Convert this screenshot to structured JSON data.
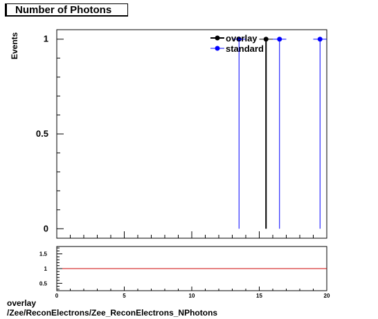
{
  "title": "Number of Photons",
  "footer": {
    "line1": "overlay",
    "line2": "/Zee/ReconElectrons/Zee_ReconElectrons_NPhotons"
  },
  "colors": {
    "overlay": "#000000",
    "standard": "#0000ff",
    "ratio_line": "#cc0000"
  },
  "chart_data": [
    {
      "type": "scatter",
      "title": "Number of Photons",
      "ylabel": "Events",
      "xlim": [
        0,
        20
      ],
      "ylim": [
        -0.05,
        1.05
      ],
      "yticks": [
        0,
        0.5,
        1
      ],
      "ytick_labels": [
        "0",
        "0.5",
        "1"
      ],
      "legend": {
        "placement": "top-right",
        "entries": [
          "overlay",
          "standard"
        ]
      },
      "series": [
        {
          "name": "overlay",
          "color": "#000000",
          "points": [
            {
              "x": 15.5,
              "y": 1,
              "xerr": 0.5
            }
          ]
        },
        {
          "name": "standard",
          "color": "#0000ff",
          "points": [
            {
              "x": 13.5,
              "y": 1,
              "xerr": 0.5
            },
            {
              "x": 16.5,
              "y": 1,
              "xerr": 0.5
            },
            {
              "x": 19.5,
              "y": 1,
              "xerr": 0.5
            }
          ]
        }
      ]
    },
    {
      "type": "line",
      "xlim": [
        0,
        20
      ],
      "ylim": [
        0.25,
        1.75
      ],
      "xticks": [
        0,
        5,
        10,
        15,
        20
      ],
      "xtick_labels": [
        "0",
        "5",
        "10",
        "15",
        "20"
      ],
      "yticks": [
        0.5,
        1,
        1.5
      ],
      "ytick_labels": [
        "0.5",
        "1",
        "1.5"
      ],
      "reference_line": {
        "y": 1
      }
    }
  ]
}
